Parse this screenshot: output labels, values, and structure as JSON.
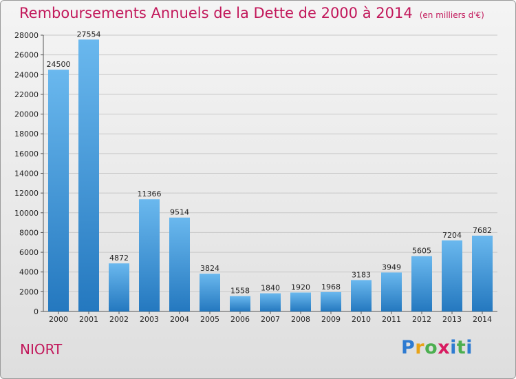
{
  "title": "Remboursements Annuels de la Dette de 2000 à 2014",
  "unit": "(en milliers d'€)",
  "city": "NIORT",
  "logo": {
    "letters": [
      "P",
      "r",
      "o",
      "x",
      "i",
      "t",
      "i"
    ],
    "colors": [
      "#2e7bd1",
      "#e8a317",
      "#4caf50",
      "#d81b60",
      "#2e7bd1",
      "#4caf50",
      "#2e7bd1"
    ]
  },
  "colors": {
    "accent": "#c2185b",
    "bar_top": "#6ab8ee",
    "bar_bottom": "#2478bf"
  },
  "chart_data": {
    "type": "bar",
    "title": "Remboursements Annuels de la Dette de 2000 à 2014",
    "xlabel": "",
    "ylabel": "",
    "categories": [
      "2000",
      "2001",
      "2002",
      "2003",
      "2004",
      "2005",
      "2006",
      "2007",
      "2008",
      "2009",
      "2010",
      "2011",
      "2012",
      "2013",
      "2014"
    ],
    "values": [
      24500,
      27554,
      4872,
      11366,
      9514,
      3824,
      1558,
      1840,
      1920,
      1968,
      3183,
      3949,
      5605,
      7204,
      7682
    ],
    "ylim": [
      0,
      28000
    ],
    "yticks": [
      0,
      2000,
      4000,
      6000,
      8000,
      10000,
      12000,
      14000,
      16000,
      18000,
      20000,
      22000,
      24000,
      26000,
      28000
    ],
    "grid": true,
    "legend": "none"
  }
}
